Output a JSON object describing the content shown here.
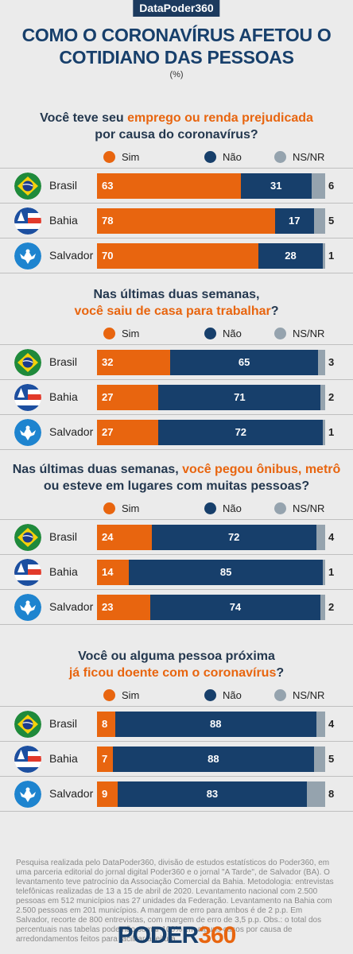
{
  "brand": "DataPoder360",
  "title_line1": "COMO O CORONAVÍRUS AFETOU O",
  "title_line2": "COTIDIANO DAS PESSOAS",
  "unit": "(%)",
  "legend": {
    "sim": "Sim",
    "nao": "Não",
    "nsnr": "NS/NR"
  },
  "colors": {
    "sim": "#e8650f",
    "nao": "#173f6b",
    "nsnr": "#95a3ae"
  },
  "chart_data": [
    {
      "type": "bar",
      "title_parts": [
        "Você teve seu ",
        "emprego ou renda prejudicada",
        "",
        "por causa do coronavírus?"
      ],
      "categories": [
        "Brasil",
        "Bahia",
        "Salvador"
      ],
      "series": [
        {
          "name": "Sim",
          "values": [
            63,
            78,
            70
          ]
        },
        {
          "name": "Não",
          "values": [
            31,
            17,
            28
          ]
        },
        {
          "name": "NS/NR",
          "values": [
            6,
            5,
            1
          ]
        }
      ]
    },
    {
      "type": "bar",
      "title_parts": [
        "Nas últimas duas semanas,",
        "",
        "",
        "você saiu de casa para trabalhar",
        "?"
      ],
      "categories": [
        "Brasil",
        "Bahia",
        "Salvador"
      ],
      "series": [
        {
          "name": "Sim",
          "values": [
            32,
            27,
            27
          ]
        },
        {
          "name": "Não",
          "values": [
            65,
            71,
            72
          ]
        },
        {
          "name": "NS/NR",
          "values": [
            3,
            2,
            1
          ]
        }
      ]
    },
    {
      "type": "bar",
      "title_parts": [
        "Nas últimas duas semanas, ",
        "você pegou ônibus, metrô",
        "",
        "ou esteve em lugares com muitas pessoas?"
      ],
      "categories": [
        "Brasil",
        "Bahia",
        "Salvador"
      ],
      "series": [
        {
          "name": "Sim",
          "values": [
            24,
            14,
            23
          ]
        },
        {
          "name": "Não",
          "values": [
            72,
            85,
            74
          ]
        },
        {
          "name": "NS/NR",
          "values": [
            4,
            1,
            2
          ]
        }
      ]
    },
    {
      "type": "bar",
      "title_parts": [
        "Você ou alguma pessoa próxima",
        "",
        "",
        "já ficou doente com o coronavírus",
        "?"
      ],
      "categories": [
        "Brasil",
        "Bahia",
        "Salvador"
      ],
      "series": [
        {
          "name": "Sim",
          "values": [
            8,
            7,
            9
          ]
        },
        {
          "name": "Não",
          "values": [
            88,
            88,
            83
          ]
        },
        {
          "name": "NS/NR",
          "values": [
            4,
            5,
            8
          ]
        }
      ]
    }
  ],
  "footnote": "Pesquisa realizada pelo DataPoder360, divisão de estudos estatísticos do Poder360, em uma parceria editorial do jornal digital Poder360 e o jornal \"A Tarde\", de Salvador (BA). O levantamento teve patrocínio da Associação Comercial da Bahia. Metodologia: entrevistas telefônicas realizadas de 13 a 15 de abril de 2020. Levantamento nacional com 2.500 pessoas em 512 municípios nas 27 unidades da Federação. Levantamento na Bahia com 2.500 pessoas em 201 municípios. A margem de erro para ambos é de 2 p.p. Em Salvador, recorte de 800 entrevistas, com margem de erro de 3,5 p.p. Obs.: o total dos percentuais nas tabelas pode não somar 100% em alguns casos por causa de arredondamentos feitos para facilitar a leitura.",
  "logo_word": "PODER",
  "logo_num": "360"
}
